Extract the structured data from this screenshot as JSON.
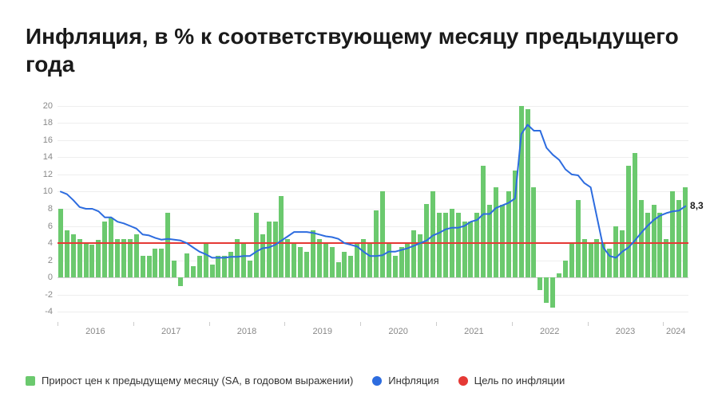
{
  "title": "Инфляция, в % к соответствующему месяцу предыдущего года",
  "chart": {
    "type": "bar+line",
    "ylim": [
      -5,
      21
    ],
    "yticks": [
      -4,
      -2,
      0,
      2,
      4,
      6,
      8,
      10,
      12,
      14,
      16,
      18,
      20
    ],
    "grid_color": "#eeeeee",
    "zero_color": "#cccccc",
    "background_color": "#ffffff",
    "bar_color": "#6bc96e",
    "line_color": "#2d6cdf",
    "target_color": "#e53935",
    "target_value": 4,
    "line_width": 2,
    "bar_gap_ratio": 0.25,
    "end_label": "8,3",
    "x_years": [
      2016,
      2017,
      2018,
      2019,
      2020,
      2021,
      2022,
      2023,
      2024
    ],
    "bars": [
      8.0,
      5.5,
      5.0,
      4.5,
      4.0,
      3.8,
      4.4,
      6.5,
      7.0,
      4.5,
      4.5,
      4.5,
      5.0,
      2.5,
      2.5,
      3.4,
      3.4,
      7.5,
      2.0,
      -1.0,
      2.8,
      1.3,
      2.5,
      4.0,
      1.5,
      2.5,
      2.5,
      3.0,
      4.5,
      4.0,
      2.0,
      7.5,
      5.0,
      6.5,
      6.5,
      9.5,
      4.5,
      4.0,
      3.5,
      3.0,
      5.5,
      4.5,
      4.0,
      3.5,
      1.8,
      3.0,
      2.5,
      4.0,
      4.5,
      4.0,
      7.8,
      10.0,
      4.0,
      2.5,
      3.5,
      4.0,
      5.5,
      5.0,
      8.6,
      10.0,
      7.5,
      7.5,
      8.0,
      7.5,
      6.5,
      6.5,
      7.5,
      13.0,
      8.5,
      10.5,
      8.5,
      10.0,
      12.5,
      20.0,
      19.6,
      10.5,
      -1.5,
      -3.0,
      -3.5,
      0.5,
      2.0,
      4.0,
      9.0,
      4.5,
      4.0,
      4.5,
      4.0,
      3.4,
      6.0,
      5.5,
      13.0,
      14.5,
      9.0,
      7.5,
      8.5,
      7.5,
      4.5,
      10.0,
      9.0,
      10.5
    ],
    "line": [
      10.0,
      9.7,
      9.0,
      8.2,
      8.0,
      8.0,
      7.7,
      7.0,
      7.0,
      6.5,
      6.3,
      6.0,
      5.7,
      5.0,
      4.9,
      4.6,
      4.4,
      4.5,
      4.4,
      4.3,
      4.0,
      3.5,
      3.0,
      2.7,
      2.3,
      2.3,
      2.3,
      2.4,
      2.4,
      2.5,
      2.5,
      3.0,
      3.4,
      3.5,
      3.8,
      4.3,
      4.8,
      5.3,
      5.3,
      5.3,
      5.2,
      5.0,
      4.8,
      4.7,
      4.5,
      4.0,
      3.8,
      3.6,
      3.0,
      2.5,
      2.5,
      2.6,
      3.0,
      3.0,
      3.2,
      3.4,
      3.7,
      4.0,
      4.3,
      4.9,
      5.2,
      5.6,
      5.8,
      5.8,
      6.0,
      6.5,
      6.7,
      7.4,
      7.4,
      8.1,
      8.4,
      8.7,
      9.2,
      16.7,
      17.8,
      17.1,
      17.1,
      15.1,
      14.3,
      13.7,
      12.6,
      12.0,
      11.9,
      11.0,
      10.5,
      7.0,
      3.5,
      2.5,
      2.3,
      3.0,
      3.5,
      4.3,
      5.2,
      6.0,
      6.7,
      7.2,
      7.5,
      7.7,
      7.8,
      8.3
    ]
  },
  "legend": {
    "bars": "Прирост цен к предыдущему месяцу (SA, в годовом выражении)",
    "line": "Инфляция",
    "target": "Цель по инфляции"
  }
}
